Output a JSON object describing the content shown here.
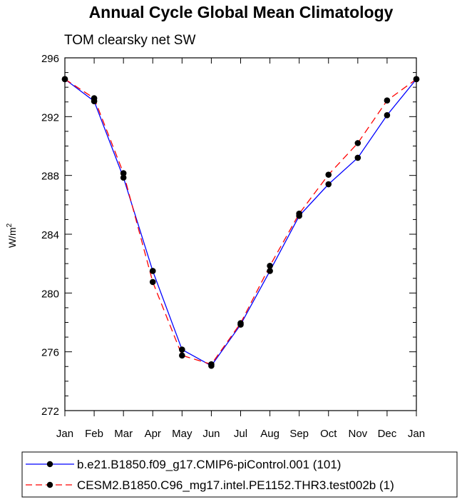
{
  "chart_data": {
    "type": "line",
    "title": "Annual Cycle Global Mean Climatology",
    "subtitle": "TOM clearsky net SW",
    "ylabel": "W/m",
    "ylabel_superscript": "2",
    "xlabel": "",
    "categories": [
      "Jan",
      "Feb",
      "Mar",
      "Apr",
      "May",
      "Jun",
      "Jul",
      "Aug",
      "Sep",
      "Oct",
      "Nov",
      "Dec",
      "Jan"
    ],
    "ylim": [
      272,
      296
    ],
    "yticks": [
      272,
      276,
      280,
      284,
      288,
      292,
      296
    ],
    "grid": false,
    "legend_position": "bottom",
    "series": [
      {
        "name": "b.e21.B1850.f09_g17.CMIP6-piControl.001 (101)",
        "color": "#0000ff",
        "line_style": "solid",
        "values": [
          294.55,
          293.05,
          287.85,
          281.5,
          276.15,
          275.05,
          277.85,
          281.5,
          285.25,
          287.4,
          289.2,
          292.1,
          294.55
        ]
      },
      {
        "name": "CESM2.B1850.C96_mg17.intel.PE1152.THR3.test002b (1)",
        "color": "#ff0000",
        "line_style": "dashed",
        "values": [
          294.55,
          293.25,
          288.15,
          280.75,
          275.75,
          275.15,
          277.95,
          281.85,
          285.4,
          288.05,
          290.2,
          293.1,
          294.55
        ]
      }
    ],
    "marker_color": "#000000"
  }
}
